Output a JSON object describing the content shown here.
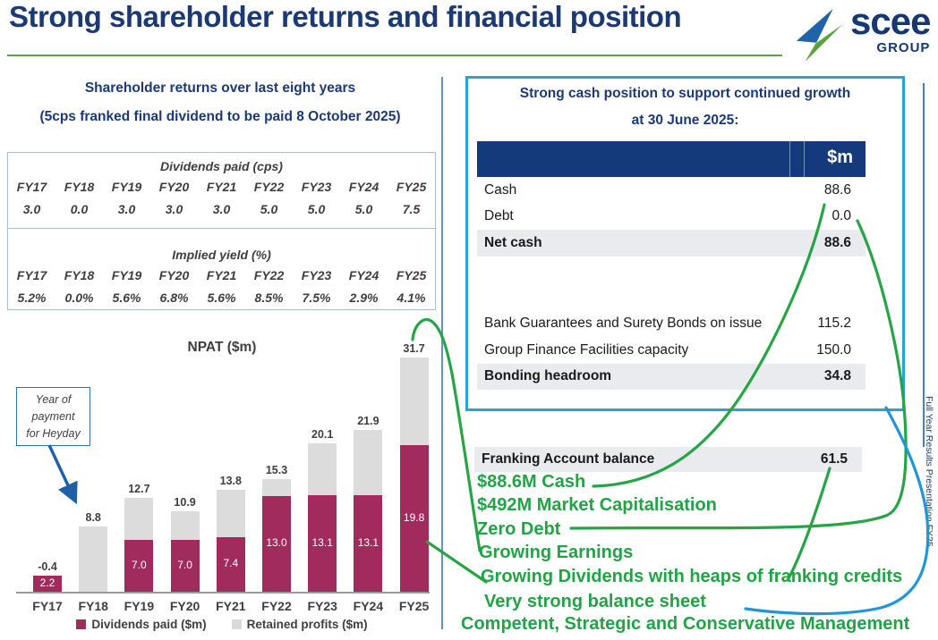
{
  "title": "Strong shareholder returns and financial position",
  "logo": {
    "brand": "scee",
    "sub": "GROUP"
  },
  "left": {
    "heading1": "Shareholder returns over last eight years",
    "heading2": "(5cps franked final dividend to be paid 8 October 2025)",
    "dividends_table": {
      "title": "Dividends paid (cps)",
      "years": [
        "FY17",
        "FY18",
        "FY19",
        "FY20",
        "FY21",
        "FY22",
        "FY23",
        "FY24",
        "FY25"
      ],
      "values": [
        "3.0",
        "0.0",
        "3.0",
        "3.0",
        "3.0",
        "5.0",
        "5.0",
        "5.0",
        "7.5"
      ]
    },
    "yield_table": {
      "title": "Implied yield (%)",
      "years": [
        "FY17",
        "FY18",
        "FY19",
        "FY20",
        "FY21",
        "FY22",
        "FY23",
        "FY24",
        "FY25"
      ],
      "values": [
        "5.2%",
        "0.0%",
        "5.6%",
        "6.8%",
        "5.6%",
        "8.5%",
        "7.5%",
        "2.9%",
        "4.1%"
      ]
    },
    "callout_lines": [
      "Year of",
      "payment",
      "for Heyday"
    ]
  },
  "chart_data": {
    "type": "bar",
    "stacked": true,
    "title": "NPAT ($m)",
    "categories": [
      "FY17",
      "FY18",
      "FY19",
      "FY20",
      "FY21",
      "FY22",
      "FY23",
      "FY24",
      "FY25"
    ],
    "series": [
      {
        "name": "Dividends paid ($m)",
        "color": "#a02b5c",
        "values": [
          2.2,
          0.0,
          7.0,
          7.0,
          7.4,
          13.0,
          13.1,
          13.1,
          19.8
        ]
      },
      {
        "name": "Retained profits ($m)",
        "color": "#dcdcdc",
        "values": [
          -2.6,
          8.8,
          5.7,
          3.9,
          6.4,
          2.3,
          7.0,
          8.8,
          11.9
        ]
      }
    ],
    "total_labels": [
      "-0.4",
      "8.8",
      "12.7",
      "10.9",
      "13.8",
      "15.3",
      "20.1",
      "21.9",
      "31.7"
    ],
    "segment_labels": [
      "2.2",
      "",
      "7.0",
      "7.0",
      "7.4",
      "13.0",
      "13.1",
      "13.1",
      "19.8"
    ],
    "ylim": [
      0,
      32
    ],
    "legend_position": "bottom",
    "grid": false
  },
  "right": {
    "box_heading1": "Strong cash position to support continued growth",
    "box_heading2": "at 30 June 2025:",
    "table": {
      "unit_header": "$m",
      "rows": [
        {
          "label": "Cash",
          "value": "88.6",
          "bold": false
        },
        {
          "label": "Debt",
          "value": "0.0",
          "bold": false
        },
        {
          "label": "Net cash",
          "value": "88.6",
          "bold": true
        },
        {
          "label": "",
          "value": "",
          "spacer": true
        },
        {
          "label": "Bank Guarantees and Surety Bonds on issue",
          "value": "115.2",
          "bold": false
        },
        {
          "label": "Group Finance Facilities capacity",
          "value": "150.0",
          "bold": false
        },
        {
          "label": "Bonding headroom",
          "value": "34.8",
          "bold": true
        }
      ]
    },
    "franking_row": {
      "label": "Franking Account balance",
      "value": "61.5"
    },
    "highlights": [
      "$88.6M Cash",
      "$492M Market Capitalisation",
      "Zero Debt",
      "Growing Earnings",
      "Growing Dividends with heaps of franking credits",
      "Very strong balance sheet",
      "Competent, Strategic and Conservative Management"
    ]
  },
  "sidebar_note": "Full Year Results Presentation FY25",
  "colors": {
    "navy": "#1b3a74",
    "header_navy": "#143a7b",
    "maroon": "#a02b5c",
    "bar_grey": "#dcdcdc",
    "row_grey": "#e9ebee",
    "accent_green": "#22a346",
    "line_green": "#27a445",
    "box_cyan": "#2aa1d8",
    "callout_blue": "#2e74b5",
    "underline_green": "#5ea04b"
  }
}
